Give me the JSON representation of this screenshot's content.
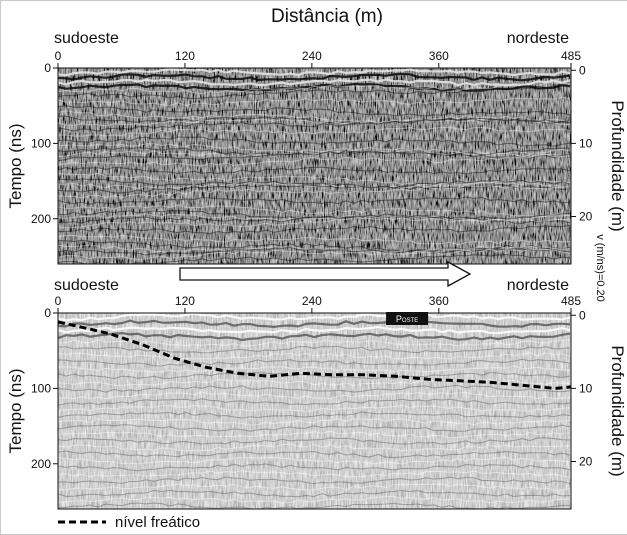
{
  "figure": {
    "top_title": "Distância (m)",
    "velocity_label": "v (m/ns)=0.20",
    "legend_label": "nível freático"
  },
  "chart_data": [
    {
      "type": "heatmap",
      "name_panel": "top",
      "left_end": "sudoeste",
      "right_end": "nordeste",
      "xlabel": "Distância (m)",
      "ylabel": "Tempo (ns)",
      "y2label": "Profundidade (m)",
      "xlim": [
        0,
        485
      ],
      "ylim": [
        0,
        260
      ],
      "x_ticks": [
        0,
        120,
        240,
        360,
        485
      ],
      "y_ticks": [
        0,
        100,
        200
      ],
      "y2_ticks": [
        0,
        10,
        20
      ],
      "tone": "dark"
    },
    {
      "type": "heatmap",
      "name_panel": "bottom",
      "left_end": "sudoeste",
      "right_end": "nordeste",
      "ylabel": "Tempo (ns)",
      "y2label": "Profundidade (m)",
      "xlim": [
        0,
        485
      ],
      "ylim": [
        0,
        260
      ],
      "x_ticks": [
        0,
        120,
        240,
        360,
        485
      ],
      "y_ticks": [
        0,
        100,
        200
      ],
      "y2_ticks": [
        0,
        10,
        20
      ],
      "tone": "light",
      "annotation": {
        "text": "Poste",
        "x": 330,
        "y": 8
      },
      "series": [
        {
          "name": "nível freático",
          "style": "dashed",
          "x": [
            0,
            20,
            50,
            80,
            110,
            140,
            170,
            200,
            230,
            260,
            290,
            320,
            350,
            380,
            410,
            440,
            470,
            485
          ],
          "y": [
            12,
            18,
            28,
            42,
            60,
            72,
            80,
            84,
            80,
            82,
            82,
            84,
            88,
            90,
            92,
            96,
            100,
            98
          ]
        }
      ]
    }
  ],
  "colors": {
    "dark_panel_bg": "#3a3a3a",
    "light_panel_bg": "#b8b8b8",
    "water_table": "#000000",
    "axis": "#111111"
  }
}
